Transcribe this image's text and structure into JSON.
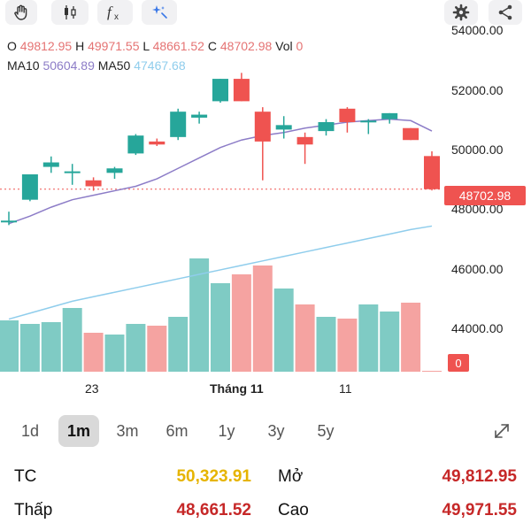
{
  "toolbar": {
    "icons": [
      "hand-icon",
      "candlestick-icon",
      "function-icon",
      "sparkle-icon",
      "gear-icon",
      "share-icon"
    ]
  },
  "legend": {
    "o_label": "O",
    "o_value": "49812.95",
    "h_label": "H",
    "h_value": "49971.55",
    "l_label": "L",
    "l_value": "48661.52",
    "c_label": "C",
    "c_value": "48702.98",
    "vol_label": "Vol",
    "vol_value": "0",
    "ma10_label": "MA10",
    "ma10_value": "50604.89",
    "ma50_label": "MA50",
    "ma50_value": "47467.68"
  },
  "price_tag": "48702.98",
  "volume_tag": "0",
  "colors": {
    "up": "#26a69a",
    "down": "#ef5350",
    "ma10": "#8c7cc7",
    "ma50": "#8fcdec",
    "tc": "#e6b400",
    "value_red": "#c62828"
  },
  "ranges": [
    "1d",
    "1m",
    "3m",
    "6m",
    "1y",
    "3y",
    "5y"
  ],
  "active_range": "1m",
  "stats": {
    "tc_label": "TC",
    "tc_value": "50,323.91",
    "open_label": "Mở",
    "open_value": "49,812.95",
    "low_label": "Thấp",
    "low_value": "48,661.52",
    "high_label": "Cao",
    "high_value": "49,971.55"
  },
  "chart_data": {
    "type": "candlestick",
    "y_ticks": [
      "54000.00",
      "52000.00",
      "50000.00",
      "48000.00",
      "46000.00",
      "44000.00"
    ],
    "ylim": [
      43300,
      54300
    ],
    "x_ticks": [
      "23",
      "Tháng 11",
      "11"
    ],
    "candles": [
      {
        "o": 47650,
        "h": 47950,
        "l": 47500,
        "c": 47650
      },
      {
        "o": 48350,
        "h": 49200,
        "l": 48300,
        "c": 49200
      },
      {
        "o": 49450,
        "h": 49800,
        "l": 49250,
        "c": 49600
      },
      {
        "o": 49250,
        "h": 49550,
        "l": 48850,
        "c": 49300
      },
      {
        "o": 49000,
        "h": 49100,
        "l": 48650,
        "c": 48800
      },
      {
        "o": 49250,
        "h": 49450,
        "l": 49050,
        "c": 49400
      },
      {
        "o": 49900,
        "h": 50550,
        "l": 49850,
        "c": 50500
      },
      {
        "o": 50300,
        "h": 50400,
        "l": 50150,
        "c": 50200
      },
      {
        "o": 50450,
        "h": 51400,
        "l": 50350,
        "c": 51300
      },
      {
        "o": 51100,
        "h": 51300,
        "l": 50900,
        "c": 51200
      },
      {
        "o": 51650,
        "h": 52400,
        "l": 51600,
        "c": 52400
      },
      {
        "o": 52400,
        "h": 52600,
        "l": 51650,
        "c": 51650
      },
      {
        "o": 51300,
        "h": 51450,
        "l": 49000,
        "c": 50300
      },
      {
        "o": 50700,
        "h": 51150,
        "l": 50400,
        "c": 50850
      },
      {
        "o": 50450,
        "h": 50600,
        "l": 49550,
        "c": 50200
      },
      {
        "o": 50650,
        "h": 51050,
        "l": 50500,
        "c": 50950
      },
      {
        "o": 51400,
        "h": 51450,
        "l": 50600,
        "c": 50950
      },
      {
        "o": 50950,
        "h": 51050,
        "l": 50550,
        "c": 51000
      },
      {
        "o": 51050,
        "h": 51250,
        "l": 50900,
        "c": 51250
      },
      {
        "o": 50750,
        "h": 50750,
        "l": 50350,
        "c": 50350
      },
      {
        "o": 49812.95,
        "h": 49971.55,
        "l": 48661.52,
        "c": 48702.98
      }
    ],
    "volumes": [
      44300,
      44200,
      44250,
      44650,
      43950,
      43900,
      44200,
      44150,
      44400,
      46050,
      45350,
      45600,
      45850,
      45200,
      44750,
      44400,
      44350,
      44750,
      44550,
      44800,
      0
    ],
    "ma10": [
      47550,
      47800,
      48100,
      48350,
      48500,
      48650,
      48800,
      49050,
      49400,
      49750,
      50100,
      50350,
      50500,
      50600,
      50750,
      50850,
      50950,
      51000,
      51050,
      51000,
      50650
    ],
    "ma50": [
      44350,
      44550,
      44750,
      44950,
      45100,
      45250,
      45400,
      45550,
      45700,
      45850,
      46000,
      46150,
      46300,
      46450,
      46600,
      46750,
      46900,
      47050,
      47200,
      47350,
      47467.68
    ],
    "current_price": 48702.98
  }
}
